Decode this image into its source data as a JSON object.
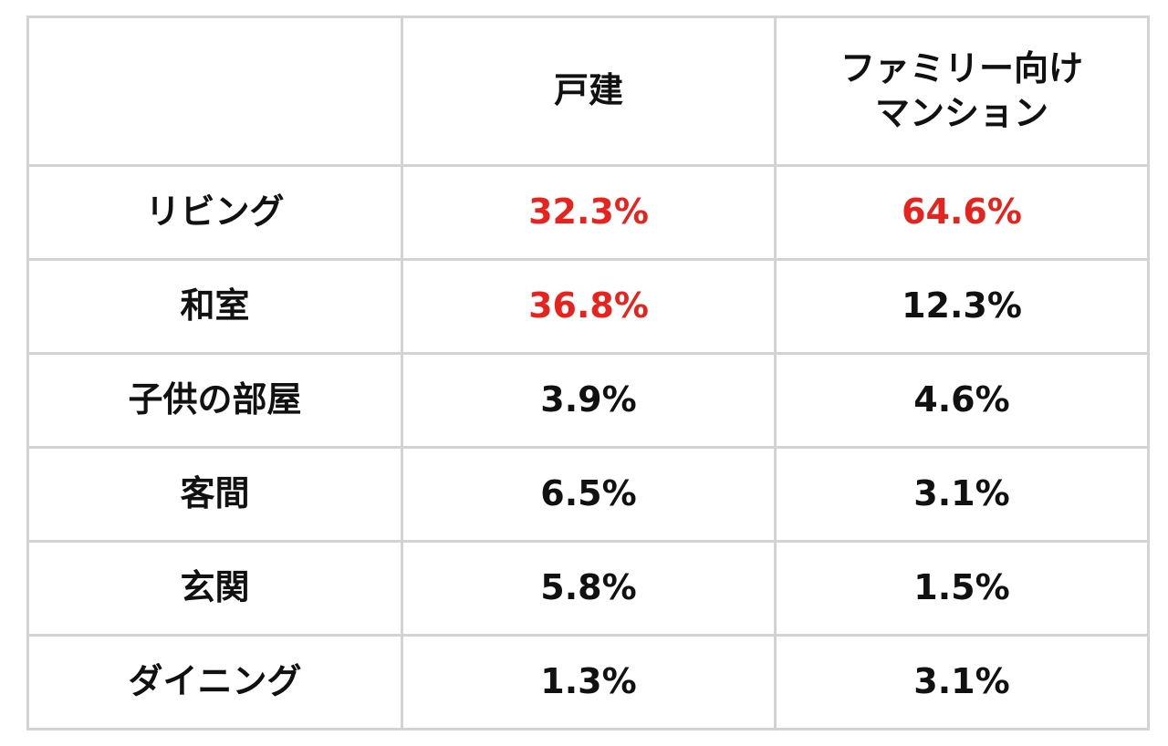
{
  "table": {
    "header": [
      "戸建",
      "ファミリー向け\nマンション"
    ],
    "highlight_color": "#e8231e",
    "text_color": "#111111",
    "rows": [
      {
        "label": "リビング",
        "values": [
          "32.3%",
          "64.6%"
        ],
        "highlight": [
          true,
          true
        ]
      },
      {
        "label": "和室",
        "values": [
          "36.8%",
          "12.3%"
        ],
        "highlight": [
          true,
          false
        ]
      },
      {
        "label": "子供の部屋",
        "values": [
          "3.9%",
          "4.6%"
        ],
        "highlight": [
          false,
          false
        ]
      },
      {
        "label": "客間",
        "values": [
          "6.5%",
          "3.1%"
        ],
        "highlight": [
          false,
          false
        ]
      },
      {
        "label": "玄関",
        "values": [
          "5.8%",
          "1.5%"
        ],
        "highlight": [
          false,
          false
        ]
      },
      {
        "label": "ダイニング",
        "values": [
          "1.3%",
          "3.1%"
        ],
        "highlight": [
          false,
          false
        ]
      }
    ]
  }
}
